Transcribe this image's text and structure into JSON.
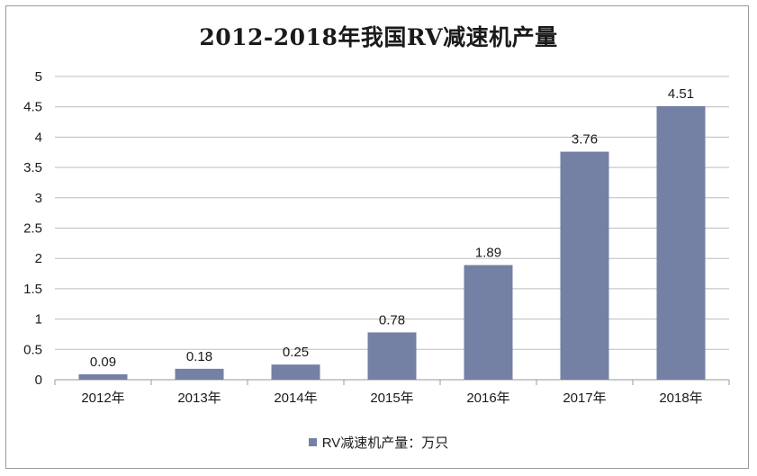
{
  "chart_data": {
    "type": "bar",
    "title": "2012-2018年我国RV减速机产量",
    "categories": [
      "2012年",
      "2013年",
      "2014年",
      "2015年",
      "2016年",
      "2017年",
      "2018年"
    ],
    "series": [
      {
        "name": "RV减速机产量：万只",
        "values": [
          0.09,
          0.18,
          0.25,
          0.78,
          1.89,
          3.76,
          4.51
        ],
        "labels": [
          "0.09",
          "0.18",
          "0.25",
          "0.78",
          "1.89",
          "3.76",
          "4.51"
        ]
      }
    ],
    "yticks": [
      "0",
      "0.5",
      "1",
      "1.5",
      "2",
      "2.5",
      "3",
      "3.5",
      "4",
      "4.5",
      "5"
    ],
    "ylim": [
      0,
      5
    ],
    "grid": true,
    "legend": "bottom-center",
    "colors": {
      "bar": "#7480a4",
      "grid": "#bdbdbd",
      "axis": "#9a9a9a"
    }
  }
}
